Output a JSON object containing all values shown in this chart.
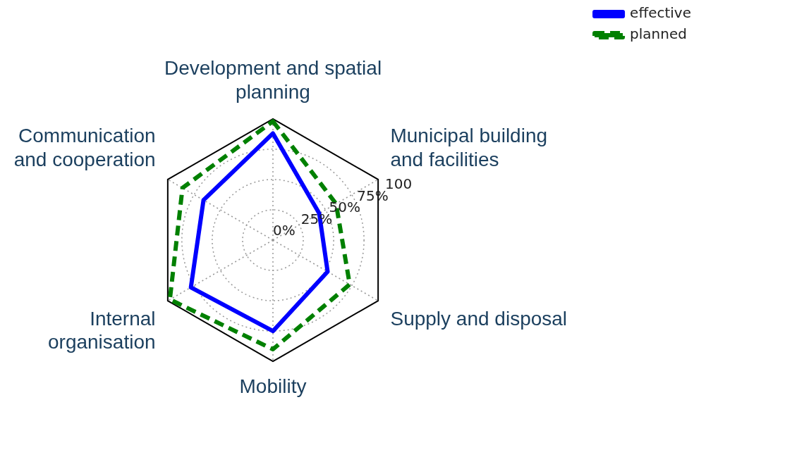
{
  "chart_data": {
    "type": "radar",
    "categories": [
      "Development and spatial\nplanning",
      "Municipal building\nand facilities",
      "Supply and disposal",
      "Mobility",
      "Internal\norganisation",
      "Communication\nand cooperation"
    ],
    "series": [
      {
        "name": "effective",
        "color": "#0000ff",
        "line_style": "solid",
        "values": [
          88,
          44,
          52,
          75,
          78,
          66
        ]
      },
      {
        "name": "planned",
        "color": "#008000",
        "line_style": "dashed",
        "values": [
          98,
          60,
          73,
          90,
          98,
          86
        ]
      }
    ],
    "ylim": [
      0,
      100
    ],
    "yticks": [
      {
        "value": 0,
        "label": "0%"
      },
      {
        "value": 25,
        "label": "25%"
      },
      {
        "value": 50,
        "label": "50%"
      },
      {
        "value": 75,
        "label": "75%"
      },
      {
        "value": 100,
        "label": "100"
      }
    ],
    "grid": true,
    "legend": "top right",
    "marker": "none"
  }
}
